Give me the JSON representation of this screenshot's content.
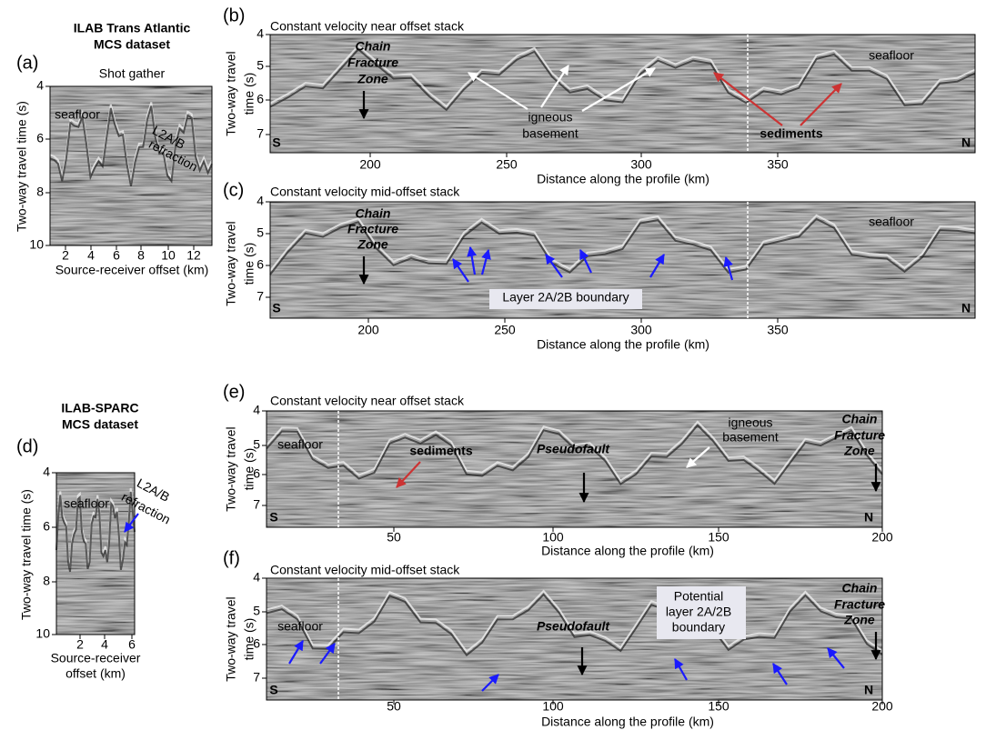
{
  "datasets": [
    {
      "title": [
        "ILAB Trans Atlantic",
        "MCS dataset"
      ]
    },
    {
      "title": [
        "ILAB-SPARC",
        "MCS dataset"
      ]
    }
  ],
  "panels": [
    {
      "label": "(a)",
      "title": "Shot gather",
      "y_label": [
        "Two-way travel time (s)"
      ],
      "x_label": [
        "Source-receiver offset (km)"
      ],
      "yticks": [
        4,
        6,
        8,
        10
      ],
      "xticks": [
        2,
        4,
        6,
        8,
        10,
        12
      ],
      "annotations": [
        "seafloor",
        "L2A/B",
        "refraction"
      ]
    },
    {
      "label": "(b)",
      "title": "Constant velocity near offset stack",
      "y_label": [
        "Two-way travel",
        "time (s)"
      ],
      "x_label": [
        "Distance along the profile (km)"
      ],
      "yticks": [
        4,
        5,
        6,
        7
      ],
      "xticks": [
        200,
        250,
        300,
        350
      ],
      "annotations": [
        "Chain",
        "Fracture",
        "Zone",
        "igneous",
        "basement",
        "sediments",
        "seafloor",
        "S",
        "N"
      ]
    },
    {
      "label": "(c)",
      "title": "Constant velocity mid-offset stack",
      "y_label": [
        "Two-way travel",
        "time (s)"
      ],
      "x_label": [
        "Distance along the profile (km)"
      ],
      "yticks": [
        4,
        5,
        6,
        7
      ],
      "xticks": [
        200,
        250,
        300,
        350
      ],
      "annotations": [
        "Chain",
        "Fracture",
        "Zone",
        "Layer 2A/2B boundary",
        "seafloor",
        "S",
        "N"
      ]
    },
    {
      "label": "(d)",
      "title": null,
      "y_label": [
        "Two-way travel time (s)"
      ],
      "x_label": [
        "Source-receiver",
        "offset (km)"
      ],
      "yticks": [
        4,
        6,
        8,
        10
      ],
      "xticks": [
        2,
        4,
        6
      ],
      "annotations": [
        "seafloor",
        "L2A/B",
        "refraction"
      ]
    },
    {
      "label": "(e)",
      "title": "Constant velocity near offset stack",
      "y_label": [
        "Two-way travel",
        "time (s)"
      ],
      "x_label": [
        "Distance along the profile (km)"
      ],
      "yticks": [
        4,
        5,
        6,
        7
      ],
      "xticks": [
        50,
        100,
        150,
        200
      ],
      "annotations": [
        "seafloor",
        "sediments",
        "Pseudofault",
        "igneous",
        "basement",
        "Chain",
        "Fracture",
        "Zone",
        "S",
        "N"
      ]
    },
    {
      "label": "(f)",
      "title": "Constant velocity mid-offset stack",
      "y_label": [
        "Two-way travel",
        "time (s)"
      ],
      "x_label": [
        "Distance along the profile (km)"
      ],
      "yticks": [
        4,
        5,
        6,
        7
      ],
      "xticks": [
        50,
        100,
        150,
        200
      ],
      "annotations": [
        "seafloor",
        "Pseudofault",
        "Potential",
        "layer 2A/2B",
        "boundary",
        "Chain",
        "Fracture",
        "Zone",
        "S",
        "N"
      ]
    }
  ]
}
